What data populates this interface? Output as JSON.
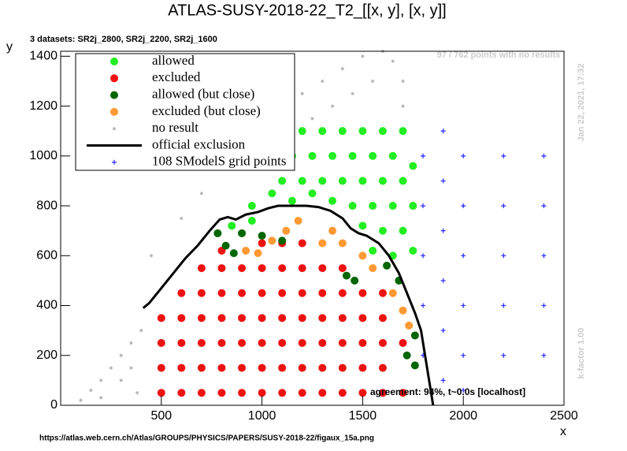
{
  "chart_data": {
    "type": "scatter",
    "title": "ATLAS-SUSY-2018-22_T2_[[x, y], [x, y]]",
    "subtitle": "3 datasets: SR2j_2800, SR2j_2200, SR2j_1600",
    "note": "97 / 762 points with no results",
    "timestamp": "Jan 22, 2021, 17:32",
    "kfactor": "k-factor 1.00",
    "agreement": "agreement: 94%, t~0.0s [localhost]",
    "source": "https://atlas.web.cern.ch/Atlas/GROUPS/PHYSICS/PAPERS/SUSY-2018-22/figaux_15a.png",
    "x_label": "x",
    "y_label": "y",
    "xlim": [
      0,
      2500
    ],
    "ylim": [
      0,
      1420
    ],
    "xticks": [
      500,
      1000,
      1500,
      2000,
      2500
    ],
    "yticks": [
      0,
      200,
      400,
      600,
      800,
      1000,
      1200,
      1400
    ],
    "legend": "upper left",
    "series": [
      {
        "name": "allowed",
        "color": "#22ee22",
        "style": "dot",
        "x": [
          1200,
          1300,
          1400,
          1500,
          1600,
          1700,
          1150,
          1250,
          1350,
          1450,
          1550,
          1650,
          1750,
          1100,
          1200,
          1300,
          1400,
          1500,
          1600,
          1700,
          950,
          1050,
          1150,
          1250,
          1350,
          1450,
          1550,
          1650,
          1750,
          850,
          950,
          1500,
          1600,
          1700,
          1750,
          1550,
          1650
        ],
        "y": [
          1100,
          1100,
          1100,
          1100,
          1100,
          1100,
          1000,
          1000,
          1000,
          1000,
          1000,
          1000,
          960,
          900,
          900,
          900,
          900,
          900,
          900,
          900,
          800,
          850,
          820,
          850,
          820,
          800,
          800,
          800,
          800,
          720,
          740,
          720,
          700,
          700,
          620,
          620,
          600
        ]
      },
      {
        "name": "excluded",
        "color": "#ee1111",
        "style": "dot",
        "x": [
          500,
          500,
          500,
          500,
          600,
          600,
          600,
          600,
          600,
          700,
          700,
          700,
          700,
          700,
          700,
          800,
          800,
          800,
          800,
          800,
          800,
          800,
          900,
          900,
          900,
          900,
          900,
          900,
          1000,
          1000,
          1000,
          1000,
          1000,
          1000,
          1000,
          1100,
          1100,
          1100,
          1100,
          1100,
          1100,
          1100,
          1200,
          1200,
          1200,
          1200,
          1200,
          1200,
          1200,
          1300,
          1300,
          1300,
          1300,
          1300,
          1300,
          1400,
          1400,
          1400,
          1400,
          1400,
          1400,
          1500,
          1500,
          1500,
          1500,
          1500,
          1600,
          1600,
          1600,
          1600,
          1600,
          1700,
          1700
        ],
        "y": [
          50,
          150,
          250,
          350,
          50,
          150,
          250,
          350,
          450,
          50,
          150,
          250,
          350,
          450,
          550,
          50,
          150,
          250,
          350,
          450,
          550,
          620,
          50,
          150,
          250,
          350,
          450,
          550,
          50,
          150,
          250,
          350,
          450,
          550,
          650,
          50,
          150,
          250,
          350,
          450,
          550,
          650,
          50,
          150,
          250,
          350,
          450,
          550,
          650,
          50,
          150,
          250,
          350,
          450,
          550,
          50,
          150,
          250,
          350,
          450,
          550,
          50,
          150,
          250,
          350,
          450,
          50,
          150,
          250,
          350,
          450,
          50,
          250
        ]
      },
      {
        "name": "allowed (but close)",
        "color": "#006600",
        "style": "dot",
        "x": [
          780,
          820,
          860,
          900,
          1000,
          1100,
          1420,
          1460,
          1620,
          1680,
          1760,
          1760,
          1720
        ],
        "y": [
          690,
          640,
          610,
          690,
          680,
          660,
          520,
          500,
          560,
          500,
          280,
          160,
          200
        ]
      },
      {
        "name": "excluded (but close)",
        "color": "#ff9933",
        "style": "dot",
        "x": [
          920,
          980,
          1050,
          1300,
          1400,
          1500,
          1550,
          1650,
          1700,
          1730,
          1120,
          1180,
          1350
        ],
        "y": [
          620,
          610,
          660,
          650,
          650,
          600,
          550,
          450,
          380,
          320,
          700,
          740,
          700
        ]
      },
      {
        "name": "no result",
        "color": "#bbbbbb",
        "style": "small",
        "x": [
          100,
          150,
          200,
          250,
          300,
          350,
          400,
          200,
          300,
          350,
          380,
          450,
          600,
          700,
          800,
          900,
          1000,
          1100,
          1200,
          1300,
          1400,
          1500,
          1600,
          1700,
          1650,
          1550,
          1450,
          1350,
          1250,
          1700
        ],
        "y": [
          20,
          60,
          100,
          150,
          200,
          250,
          300,
          30,
          100,
          150,
          50,
          600,
          750,
          850,
          950,
          1050,
          1100,
          1200,
          1250,
          1300,
          1350,
          1400,
          1420,
          1300,
          1380,
          1300,
          1250,
          1200,
          1150,
          1200
        ]
      },
      {
        "name": "official exclusion",
        "color": "#000000",
        "style": "line",
        "x": [
          410,
          440,
          500,
          560,
          620,
          680,
          740,
          790,
          830,
          870,
          920,
          980,
          1030,
          1080,
          1150,
          1220,
          1280,
          1340,
          1400,
          1440,
          1480,
          1520,
          1580,
          1630,
          1680,
          1720,
          1760,
          1790,
          1810,
          1830,
          1850
        ],
        "y": [
          390,
          410,
          470,
          530,
          590,
          640,
          700,
          745,
          755,
          745,
          765,
          775,
          790,
          800,
          800,
          800,
          795,
          780,
          750,
          710,
          690,
          680,
          650,
          600,
          530,
          450,
          370,
          300,
          200,
          100,
          0
        ]
      },
      {
        "name": "108 SModelS grid points",
        "color": "#3333ff",
        "style": "cross",
        "x": [
          2200,
          2400,
          2200,
          2400,
          2200,
          2400,
          2200,
          2400,
          2200,
          2400,
          2000,
          2000,
          2000,
          2000,
          2000,
          2000,
          1900,
          1900,
          1900,
          1900,
          1900,
          1900,
          1800,
          1800,
          1800,
          1800,
          1800
        ],
        "y": [
          1000,
          1000,
          800,
          800,
          600,
          600,
          400,
          400,
          200,
          200,
          1000,
          800,
          600,
          400,
          200,
          60,
          1100,
          900,
          700,
          500,
          300,
          100,
          1000,
          800,
          600,
          400,
          200
        ]
      }
    ]
  }
}
